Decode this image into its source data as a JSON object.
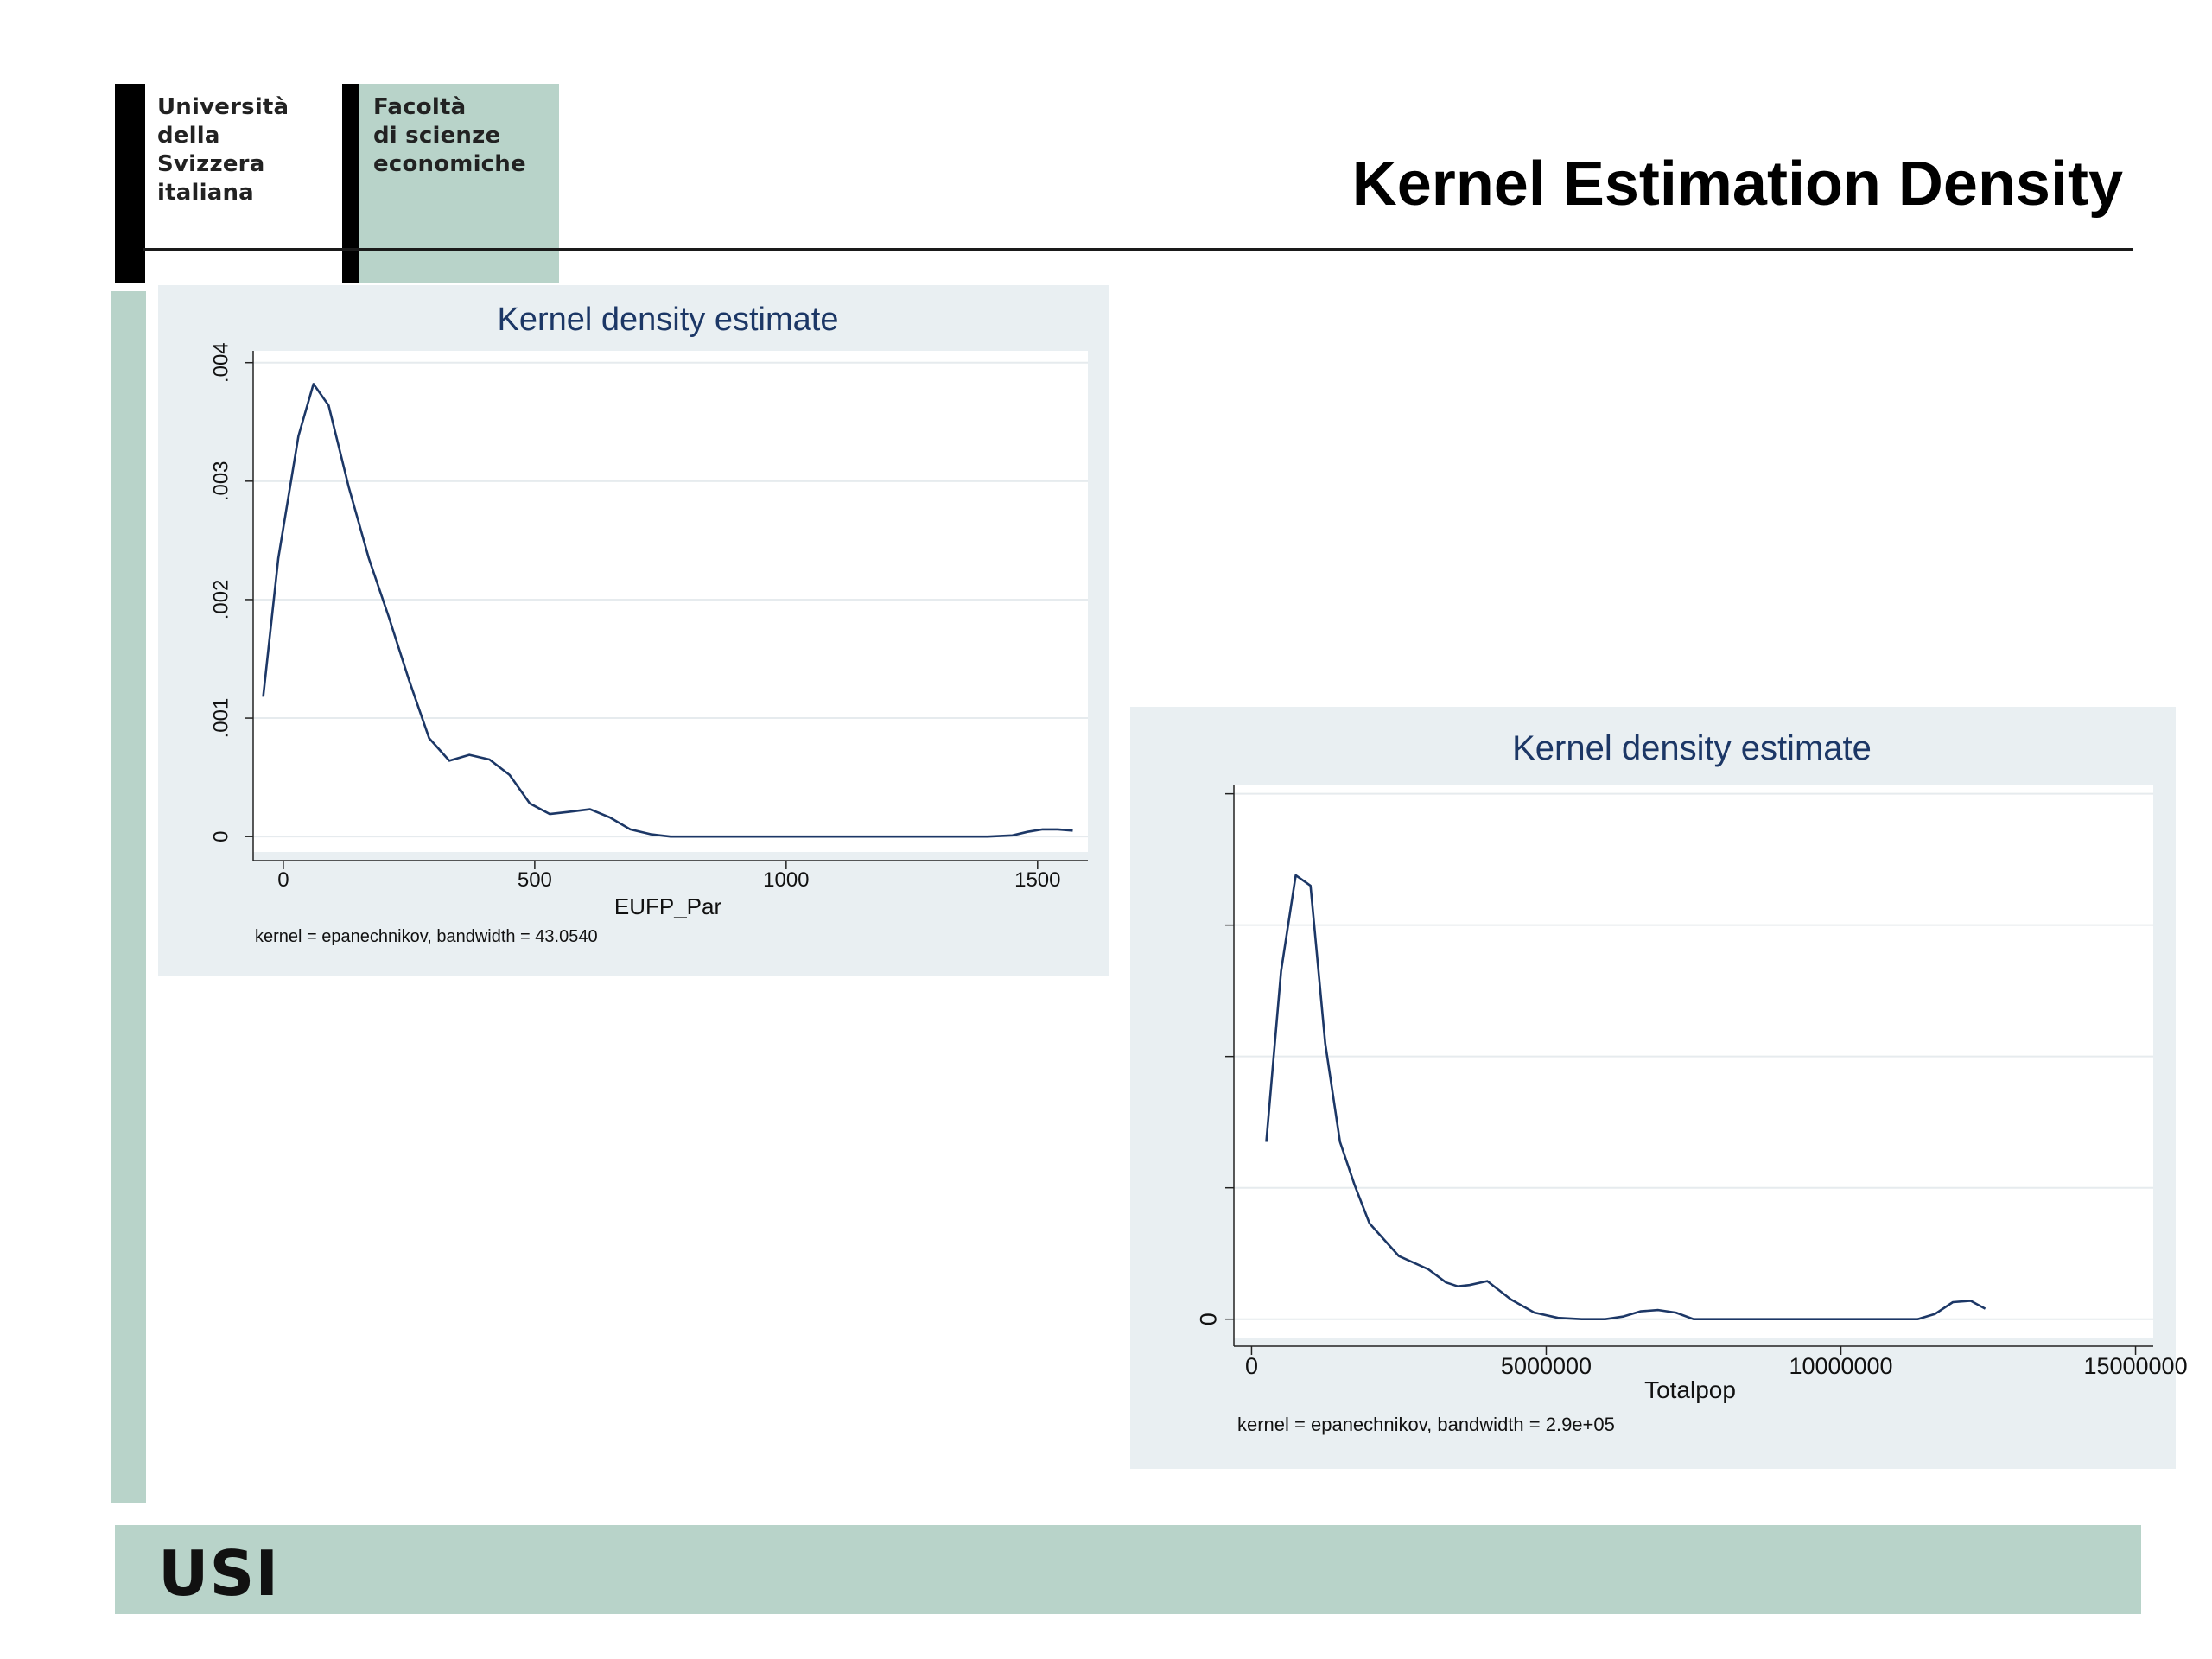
{
  "header": {
    "logo_university": [
      "Università",
      "della",
      "Svizzera",
      "italiana"
    ],
    "logo_faculty": [
      "Facoltà",
      "di scienze",
      "economiche"
    ],
    "slide_title": "Kernel Estimation Density"
  },
  "footer": {
    "text": "USI"
  },
  "colors": {
    "brand_green": "#b8d3c9",
    "panel_bg": "#e9eff2",
    "line": "#1c3766",
    "title": "#1c3766"
  },
  "chart_data": [
    {
      "type": "line",
      "title": "Kernel density estimate",
      "xlabel": "EUFP_Par",
      "ylabel": "",
      "note": "kernel = epanechnikov, bandwidth = 43.0540",
      "xlim": [
        -60,
        1600
      ],
      "ylim": [
        -0.00013,
        0.0041
      ],
      "xticks": [
        0,
        500,
        1000,
        1500
      ],
      "xtick_labels": [
        "0",
        "500",
        "1000",
        "1500"
      ],
      "yticks": [
        0,
        0.001,
        0.002,
        0.003,
        0.004
      ],
      "ytick_labels": [
        "0",
        ".001",
        ".002",
        ".003",
        ".004"
      ],
      "grid": true,
      "series": [
        {
          "x": [
            -40,
            -10,
            30,
            60,
            90,
            130,
            170,
            210,
            250,
            290,
            330,
            370,
            410,
            450,
            490,
            530,
            570,
            610,
            650,
            690,
            730,
            770,
            810,
            900,
            1000,
            1100,
            1200,
            1300,
            1400,
            1450,
            1480,
            1510,
            1540,
            1570
          ],
          "y": [
            0.00118,
            0.00235,
            0.00338,
            0.00382,
            0.00364,
            0.00295,
            0.00235,
            0.00185,
            0.00132,
            0.00083,
            0.00064,
            0.00069,
            0.00065,
            0.00052,
            0.00028,
            0.00019,
            0.00021,
            0.00023,
            0.00016,
            6e-05,
            2e-05,
            0.0,
            0.0,
            0.0,
            0.0,
            0.0,
            0.0,
            0.0,
            0.0,
            1e-05,
            4e-05,
            6e-05,
            6e-05,
            5e-05
          ]
        }
      ]
    },
    {
      "type": "line",
      "title": "Kernel density estimate",
      "xlabel": "Totalpop",
      "ylabel": "",
      "note": "kernel = epanechnikov, bandwidth =  2.9e+05",
      "xlim": [
        -300000,
        15300000
      ],
      "ylim": [
        -0.14,
        4.07
      ],
      "xticks": [
        0,
        5000000,
        10000000,
        15000000
      ],
      "xtick_labels": [
        "0",
        "5000000",
        "10000000",
        "15000000"
      ],
      "yticks": [
        0,
        1,
        2,
        3,
        4
      ],
      "ytick_labels": [
        "0",
        "",
        "",
        "",
        ""
      ],
      "grid": true,
      "series": [
        {
          "x": [
            250000,
            500000,
            750000,
            1000000,
            1250000,
            1500000,
            1750000,
            2000000,
            2500000,
            3000000,
            3300000,
            3500000,
            3700000,
            4000000,
            4400000,
            4800000,
            5200000,
            5600000,
            6000000,
            6300000,
            6600000,
            6900000,
            7200000,
            7500000,
            8000000,
            9000000,
            10000000,
            10500000,
            11000000,
            11300000,
            11600000,
            11900000,
            12200000,
            12450000
          ],
          "y": [
            1.35,
            2.65,
            3.38,
            3.3,
            2.1,
            1.35,
            1.02,
            0.73,
            0.48,
            0.38,
            0.28,
            0.25,
            0.26,
            0.29,
            0.15,
            0.05,
            0.01,
            0.0,
            0.0,
            0.02,
            0.06,
            0.07,
            0.05,
            0.0,
            0.0,
            0.0,
            0.0,
            0.0,
            0.0,
            0.0,
            0.04,
            0.13,
            0.14,
            0.08
          ]
        }
      ]
    }
  ]
}
